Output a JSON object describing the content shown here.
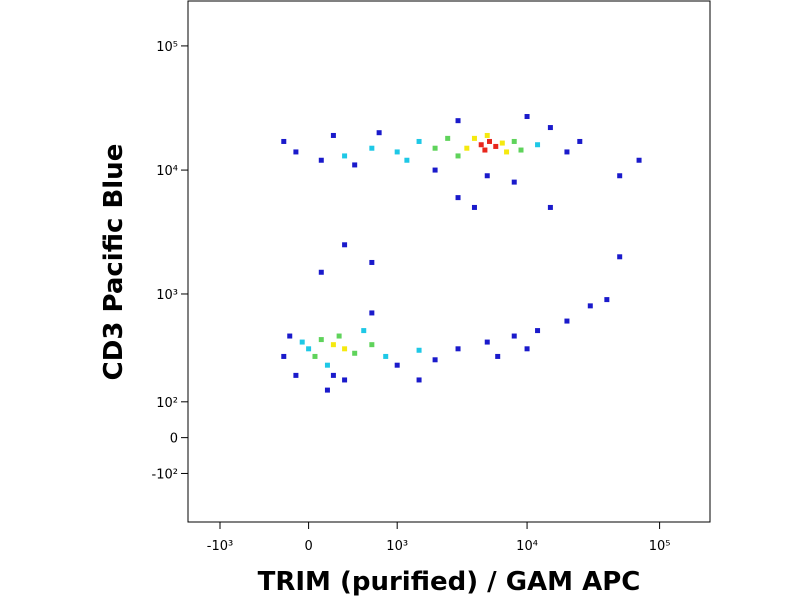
{
  "chart_data": {
    "type": "scatter",
    "x_label": "TRIM (purified) / GAM APC",
    "y_label": "CD3 Pacific Blue",
    "xscale": "biexponential",
    "yscale": "biexponential",
    "xlim": [
      -1800,
      240000
    ],
    "ylim": [
      -320,
      230000
    ],
    "xticks": [
      {
        "value": -1000,
        "label": "-10³"
      },
      0,
      {
        "value": 1000,
        "label": "10³"
      },
      {
        "value": 10000,
        "label": "10⁴"
      },
      {
        "value": 100000,
        "label": "10⁵"
      }
    ],
    "yticks": [
      {
        "value": -100,
        "label": "-10²"
      },
      0,
      {
        "value": 100,
        "label": "10²"
      },
      {
        "value": 1000,
        "label": "10³"
      },
      {
        "value": 10000,
        "label": "10⁴"
      },
      {
        "value": 100000,
        "label": "10⁵"
      }
    ],
    "series": [
      {
        "color": "#1a1acb",
        "x": [
          -100,
          -200,
          100,
          200,
          400,
          700,
          2000,
          3000,
          5000,
          8000,
          15000,
          20000,
          25000,
          10000,
          50000,
          70000,
          3000,
          4000,
          -200,
          -150,
          200,
          1000,
          2000,
          3000,
          5000,
          8000,
          12000,
          20000,
          30000,
          40000,
          600,
          300,
          150,
          -100,
          1500,
          6000,
          10000,
          100,
          300,
          600,
          15000,
          50000
        ],
        "values": [
          14000,
          17000,
          12000,
          19000,
          11000,
          20000,
          10000,
          25000,
          9000,
          8000,
          22000,
          14000,
          17000,
          27000,
          9000,
          12000,
          6000,
          5000,
          300,
          450,
          200,
          250,
          280,
          350,
          400,
          450,
          500,
          600,
          800,
          900,
          700,
          180,
          140,
          200,
          180,
          300,
          350,
          1500,
          2500,
          1800,
          5000,
          2000
        ]
      },
      {
        "color": "#1ec8e6",
        "x": [
          1000,
          1500,
          600,
          300,
          12000,
          1200,
          0,
          800,
          150,
          -50,
          1500,
          500
        ],
        "values": [
          14000,
          17000,
          15000,
          13000,
          16000,
          12000,
          350,
          300,
          250,
          400,
          340,
          500
        ]
      },
      {
        "color": "#5fd35b",
        "x": [
          2000,
          3000,
          8000,
          2500,
          9000,
          100,
          400,
          50,
          250,
          600
        ],
        "values": [
          15000,
          13000,
          17000,
          18000,
          14500,
          420,
          320,
          300,
          450,
          380
        ]
      },
      {
        "color": "#f5e90f",
        "x": [
          3500,
          6500,
          4000,
          7000,
          5000,
          200,
          300
        ],
        "values": [
          15000,
          16500,
          18000,
          14000,
          19000,
          380,
          350
        ]
      },
      {
        "color": "#e8261c",
        "x": [
          4500,
          5200,
          5800,
          4800
        ],
        "values": [
          16000,
          17000,
          15500,
          14500
        ]
      }
    ]
  }
}
